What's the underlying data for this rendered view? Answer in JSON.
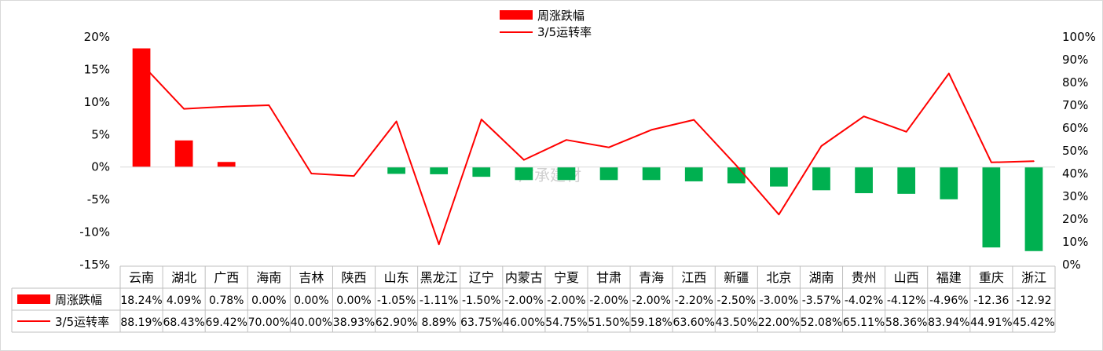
{
  "colors": {
    "bar_positive": "#ff0000",
    "bar_negative": "#00b050",
    "line": "#ff0000",
    "text": "#000000",
    "grid_border": "#bfbfbf",
    "watermark": "#d0d0d0"
  },
  "watermark": "广承建材",
  "chart_data": {
    "type": "bar",
    "categories": [
      "云南",
      "湖北",
      "广西",
      "海南",
      "吉林",
      "陕西",
      "山东",
      "黑龙江",
      "辽宁",
      "内蒙古",
      "宁夏",
      "甘肃",
      "青海",
      "江西",
      "新疆",
      "北京",
      "湖南",
      "贵州",
      "山西",
      "福建",
      "重庆",
      "浙江"
    ],
    "series": [
      {
        "name": "周涨跌幅",
        "type": "bar",
        "axis": "left",
        "values": [
          18.24,
          4.09,
          0.78,
          0.0,
          0.0,
          0.0,
          -1.05,
          -1.11,
          -1.5,
          -2.0,
          -2.0,
          -2.0,
          -2.0,
          -2.2,
          -2.5,
          -3.0,
          -3.57,
          -4.02,
          -4.12,
          -4.96,
          -12.36,
          -12.92
        ],
        "labels": [
          "18.24%",
          "4.09%",
          "0.78%",
          "0.00%",
          "0.00%",
          "0.00%",
          "-1.05%",
          "-1.11%",
          "-1.50%",
          "-2.00%",
          "-2.00%",
          "-2.00%",
          "-2.00%",
          "-2.20%",
          "-2.50%",
          "-3.00%",
          "-3.57%",
          "-4.02%",
          "-4.12%",
          "-4.96%",
          "-12.36",
          "-12.92"
        ]
      },
      {
        "name": "3/5运转率",
        "type": "line",
        "axis": "right",
        "values": [
          88.19,
          68.43,
          69.42,
          70.0,
          40.0,
          38.93,
          62.9,
          8.89,
          63.75,
          46.0,
          54.75,
          51.5,
          59.18,
          63.6,
          43.5,
          22.0,
          52.08,
          65.11,
          58.36,
          83.94,
          44.91,
          45.42
        ],
        "labels": [
          "88.19%",
          "68.43%",
          "69.42%",
          "70.00%",
          "40.00%",
          "38.93%",
          "62.90%",
          "8.89%",
          "63.75%",
          "46.00%",
          "54.75%",
          "51.50%",
          "59.18%",
          "63.60%",
          "43.50%",
          "22.00%",
          "52.08%",
          "65.11%",
          "58.36%",
          "83.94%",
          "44.91%",
          "45.42%"
        ]
      }
    ],
    "y_left": {
      "range": [
        -15,
        20
      ],
      "ticks": [
        20,
        15,
        10,
        5,
        0,
        -5,
        -10,
        -15
      ],
      "tick_labels": [
        "20%",
        "15%",
        "10%",
        "5%",
        "0%",
        "-5%",
        "-10%",
        "-15%"
      ]
    },
    "y_right": {
      "range": [
        0,
        100
      ],
      "ticks": [
        100,
        90,
        80,
        70,
        60,
        50,
        40,
        30,
        20,
        10,
        0
      ],
      "tick_labels": [
        "100%",
        "90%",
        "80%",
        "70%",
        "60%",
        "50%",
        "40%",
        "30%",
        "20%",
        "10%",
        "0%"
      ]
    },
    "legend_position": "top-center",
    "data_table": true,
    "grid": false
  }
}
